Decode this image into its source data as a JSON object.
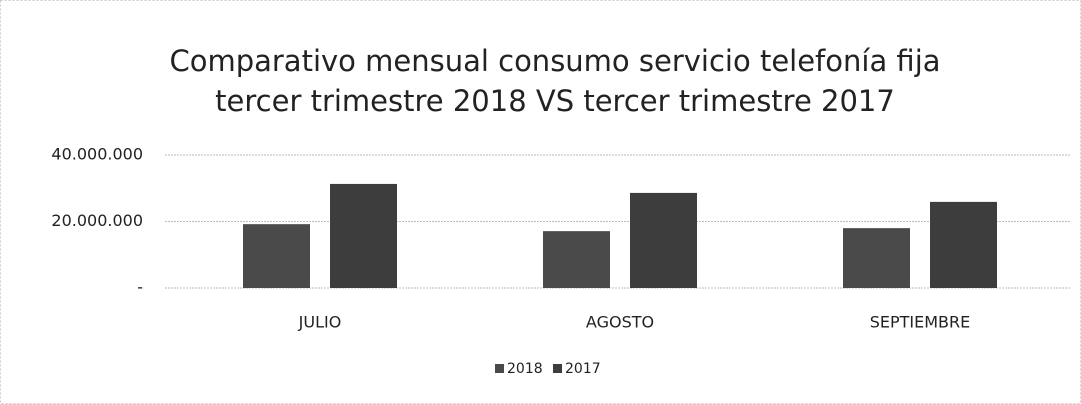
{
  "chart_data": {
    "type": "bar",
    "title": [
      "Comparativo mensual consumo servicio telefonía fija",
      "tercer trimestre 2018 VS tercer trimestre 2017"
    ],
    "categories": [
      "JULIO",
      "AGOSTO",
      "SEPTIEMBRE"
    ],
    "series": [
      {
        "name": "2018",
        "color": "#4a4a4a",
        "values": [
          19200000,
          17100000,
          18000000
        ]
      },
      {
        "name": "2017",
        "color": "#3d3d3d",
        "values": [
          31300000,
          28600000,
          25900000
        ]
      }
    ],
    "ylim": [
      0,
      40000000
    ],
    "yticks": [
      {
        "value": 0,
        "label": "-"
      },
      {
        "value": 20000000,
        "label": "20.000.000"
      },
      {
        "value": 40000000,
        "label": "40.000.000"
      }
    ],
    "grid": true,
    "legend": "bottom"
  }
}
